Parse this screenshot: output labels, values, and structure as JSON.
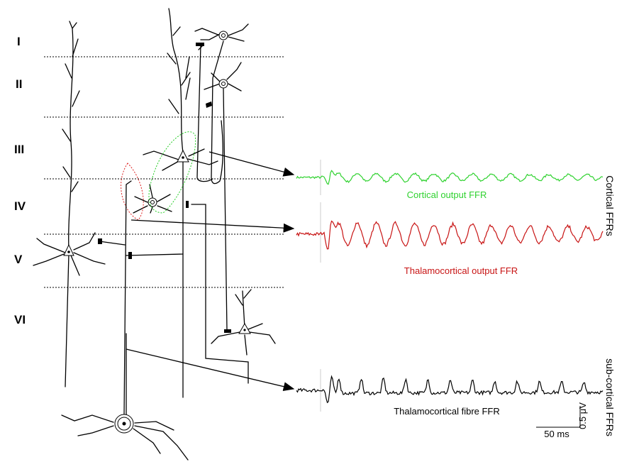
{
  "layers": [
    "I",
    "II",
    "III",
    "IV",
    "V",
    "VI"
  ],
  "traces": [
    {
      "label": "Cortical output  FFR"
    },
    {
      "label": "Thalamocortical output  FFR"
    },
    {
      "label": "Thalamocortical fibre  FFR"
    }
  ],
  "side_labels": {
    "cortical": "Cortical FFRs",
    "subcortical": "sub-cortical FFRs"
  },
  "scale_bar": {
    "amplitude": "0.5 μV",
    "time": "50 ms"
  }
}
